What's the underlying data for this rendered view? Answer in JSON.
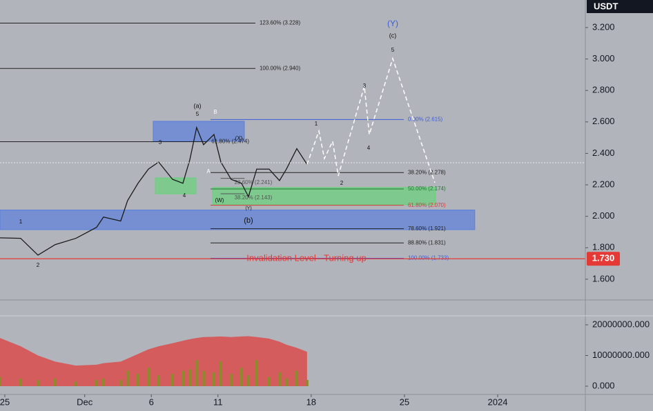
{
  "chart_data": {
    "type": "line",
    "currency": "USDT",
    "x": [
      -0.36,
      1.19,
      2.49,
      3.78,
      5.34,
      6.89,
      7.41,
      8.7,
      9.22,
      10.0,
      10.78,
      11.55,
      12.59,
      13.37,
      13.89,
      14.4,
      14.92,
      15.7,
      16.22,
      16.99,
      17.77,
      18.29,
      18.91,
      19.84,
      20.62,
      21.14,
      21.92,
      22.69
    ],
    "series": [
      {
        "name": "Price",
        "color": "#1a1a1a",
        "values": [
          1.863,
          1.86,
          1.753,
          1.82,
          1.86,
          1.93,
          1.995,
          1.97,
          2.1,
          2.21,
          2.3,
          2.345,
          2.235,
          2.21,
          2.36,
          2.564,
          2.455,
          2.52,
          2.345,
          2.235,
          2.21,
          2.125,
          2.3,
          2.3,
          2.227,
          2.3,
          2.43,
          2.33
        ]
      }
    ],
    "volume": {
      "values": [
        3000000,
        2500000,
        2000000,
        2500000,
        1500000,
        2000000,
        2500000,
        2000000,
        5000000,
        4000000,
        6000000,
        3500000,
        4000000,
        5000000,
        5500000,
        8500000,
        5000000,
        4500000,
        8000000,
        4000000,
        6000000,
        3500000,
        8500000,
        3000000,
        4500000,
        2500000,
        5000000,
        2000000
      ],
      "average": [
        15700000,
        13000000,
        10000000,
        8000000,
        6700000,
        7000000,
        7500000,
        8000000,
        9000000,
        10500000,
        12000000,
        13000000,
        14000000,
        14800000,
        15300000,
        15700000,
        16000000,
        16100000,
        16200000,
        16000000,
        16200000,
        16300000,
        16000000,
        15500000,
        14500000,
        13500000,
        12500000,
        11200000
      ],
      "color": "#8c8a2c",
      "average_color": "#d94c4c",
      "ylim": [
        -2250000,
        22470000
      ],
      "yticks": [
        {
          "value": 0,
          "label": "0.000"
        },
        {
          "value": 10000000,
          "label": "10000000.000"
        },
        {
          "value": 20000000,
          "label": "20000000.000"
        }
      ]
    },
    "projection": {
      "x": [
        22.69,
        23.58,
        23.99,
        24.61,
        25.03,
        26.99,
        27.36,
        29.12,
        32.28
      ],
      "values": [
        2.33,
        2.542,
        2.367,
        2.477,
        2.257,
        2.827,
        2.52,
        3.003,
        2.214
      ]
    },
    "xlim": [
      -0.36,
      43.58
    ],
    "xticks": [
      {
        "value": 0,
        "label": "25"
      },
      {
        "value": 6,
        "label": "Dec"
      },
      {
        "value": 11,
        "label": "6"
      },
      {
        "value": 16,
        "label": "11"
      },
      {
        "value": 23,
        "label": "18"
      },
      {
        "value": 30,
        "label": "25"
      },
      {
        "value": 37,
        "label": "2024"
      }
    ],
    "ylim": [
      1.468,
      3.375
    ],
    "yticks": [
      {
        "value": 1.6,
        "label": "1.600"
      },
      {
        "value": 1.8,
        "label": "1.800"
      },
      {
        "value": 2.0,
        "label": "2.000"
      },
      {
        "value": 2.2,
        "label": "2.200"
      },
      {
        "value": 2.4,
        "label": "2.400"
      },
      {
        "value": 2.6,
        "label": "2.600"
      },
      {
        "value": 2.8,
        "label": "2.800"
      },
      {
        "value": 3.0,
        "label": "3.000"
      },
      {
        "value": 3.2,
        "label": "3.200"
      }
    ],
    "zones": [
      {
        "color": "#5b7fdc",
        "top": 2.04,
        "bottom": 1.915,
        "x": [
          -0.36,
          35.28
        ]
      },
      {
        "color": "#5b7fdc",
        "top": 2.604,
        "bottom": 2.477,
        "x": [
          11.14,
          17.98
        ]
      },
      {
        "color": "#66d17a",
        "top": 2.244,
        "bottom": 2.143,
        "x": [
          11.3,
          14.35
        ]
      },
      {
        "color": "#66d17a",
        "top": 2.183,
        "bottom": 2.073,
        "x": [
          15.6,
          32.33
        ]
      }
    ],
    "levels": [
      {
        "label": "123.60% (3.228)",
        "value": 3.228,
        "color": "#222222",
        "x": [
          -0.36,
          18.81
        ],
        "label_side": "right"
      },
      {
        "label": "100.00% (2.940)",
        "value": 2.94,
        "color": "#222222",
        "x": [
          -0.36,
          18.81
        ],
        "label_side": "right"
      },
      {
        "label": "61.80% (2.474)",
        "value": 2.474,
        "color": "#222222",
        "x": [
          -0.36,
          15.2
        ],
        "label_side": "right"
      },
      {
        "label": "0.00% (2.615)",
        "value": 2.615,
        "color": "#3b5bdb",
        "x": [
          15.44,
          29.95
        ],
        "label_side": "right"
      },
      {
        "label": "38.20% (2.278)",
        "value": 2.278,
        "color": "#222222",
        "x": [
          15.44,
          29.95
        ],
        "label_side": "right"
      },
      {
        "label": "50.00% (2.174)",
        "value": 2.174,
        "color": "#1f7a2e",
        "x": [
          15.44,
          29.95
        ],
        "label_side": "right"
      },
      {
        "label": "61.80% (2.070)",
        "value": 2.07,
        "color": "#d63a3a",
        "x": [
          15.44,
          29.95
        ],
        "label_side": "right"
      },
      {
        "label": "78.60% (1.921)",
        "value": 1.921,
        "color": "#222222",
        "x": [
          15.44,
          29.95
        ],
        "label_side": "right"
      },
      {
        "label": "88.80% (1.831)",
        "value": 1.831,
        "color": "#222222",
        "x": [
          15.44,
          29.95
        ],
        "label_side": "right"
      },
      {
        "label": "100.00% (1.733)",
        "value": 1.733,
        "color": "#3b5bdb",
        "x": [
          15.44,
          29.95
        ],
        "label_side": "right"
      },
      {
        "label": "23.60% (2.241)",
        "value": 2.241,
        "color": "#555555",
        "x": [
          16.2,
          18.0
        ],
        "label_side": "left"
      },
      {
        "label": "38.20% (2.143)",
        "value": 2.143,
        "color": "#555555",
        "x": [
          16.2,
          18.0
        ],
        "label_side": "left"
      }
    ],
    "invalidation": {
      "label": "Invalidation Level - Turning up",
      "value": 1.73,
      "value_label": "1.730",
      "color": "#e53935"
    },
    "waves": [
      "(Y)",
      "(c)",
      "5",
      "3",
      "4",
      "1",
      "2",
      "(a)",
      "5",
      "B",
      "A",
      "(X)",
      "(W)",
      "(Y)",
      "(b)",
      "1",
      "2",
      "3",
      "4"
    ]
  }
}
